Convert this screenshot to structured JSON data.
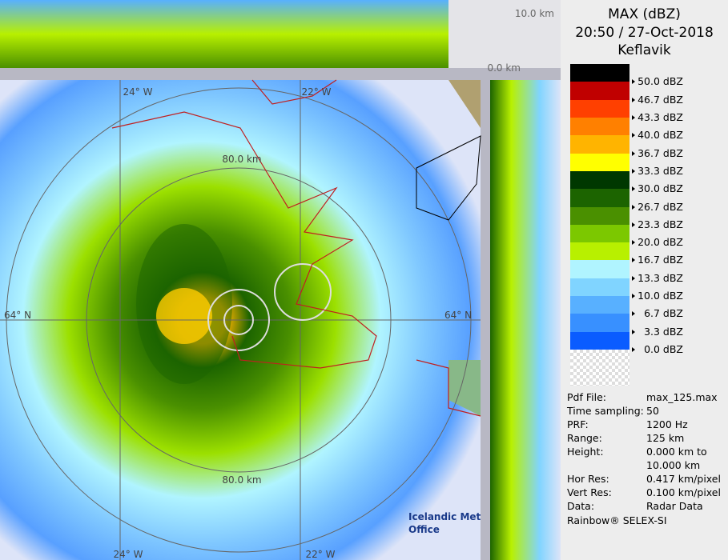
{
  "header": {
    "title": "MAX (dBZ)",
    "time": "20:50 / 27-Oct-2018",
    "site": "Keflavik"
  },
  "legend": [
    {
      "label": "50.0 dBZ",
      "color": "#000000"
    },
    {
      "label": "46.7 dBZ",
      "color": "#c00000"
    },
    {
      "label": "43.3 dBZ",
      "color": "#ff4000"
    },
    {
      "label": "40.0 dBZ",
      "color": "#ff8000"
    },
    {
      "label": "36.7 dBZ",
      "color": "#ffb400"
    },
    {
      "label": "33.3 dBZ",
      "color": "#ffff00"
    },
    {
      "label": "30.0 dBZ",
      "color": "#003800"
    },
    {
      "label": "26.7 dBZ",
      "color": "#1c6400"
    },
    {
      "label": "23.3 dBZ",
      "color": "#4a9000"
    },
    {
      "label": "20.0 dBZ",
      "color": "#7cc800"
    },
    {
      "label": "16.7 dBZ",
      "color": "#b8f000"
    },
    {
      "label": "13.3 dBZ",
      "color": "#b0f4ff"
    },
    {
      "label": "10.0 dBZ",
      "color": "#80d4ff"
    },
    {
      "label": "6.7 dBZ",
      "color": "#58b0ff"
    },
    {
      "label": "3.3 dBZ",
      "color": "#3890ff"
    },
    {
      "label": "0.0 dBZ",
      "color": "#0a5cff"
    }
  ],
  "info": [
    {
      "label": "Pdf File:",
      "value": [
        "max_125.max"
      ]
    },
    {
      "label": "Time sampling:",
      "value": [
        "50"
      ]
    },
    {
      "label": "PRF:",
      "value": [
        "1200 Hz"
      ]
    },
    {
      "label": "Range:",
      "value": [
        "125 km"
      ]
    },
    {
      "label": "Height:",
      "value": [
        "0.000 km to",
        "10.000 km"
      ]
    },
    {
      "label": "Hor Res:",
      "value": [
        "0.417 km/pixel"
      ]
    },
    {
      "label": "Vert Res:",
      "value": [
        "0.100 km/pixel"
      ]
    },
    {
      "label": "Data:",
      "value": [
        "Radar Data"
      ]
    }
  ],
  "footer": "Rainbow® SELEX-SI",
  "map": {
    "lon_top": [
      "24° W",
      "22° W"
    ],
    "lon_bottom": [
      "24° W",
      "22° W"
    ],
    "lat": [
      "64° N",
      "64° N"
    ],
    "rings": [
      "80.0 km",
      "80.0 km"
    ],
    "height_top": "10.0 km",
    "height_bottom": "0.0 km",
    "logo": [
      "Icelandic Met",
      "Office"
    ]
  }
}
